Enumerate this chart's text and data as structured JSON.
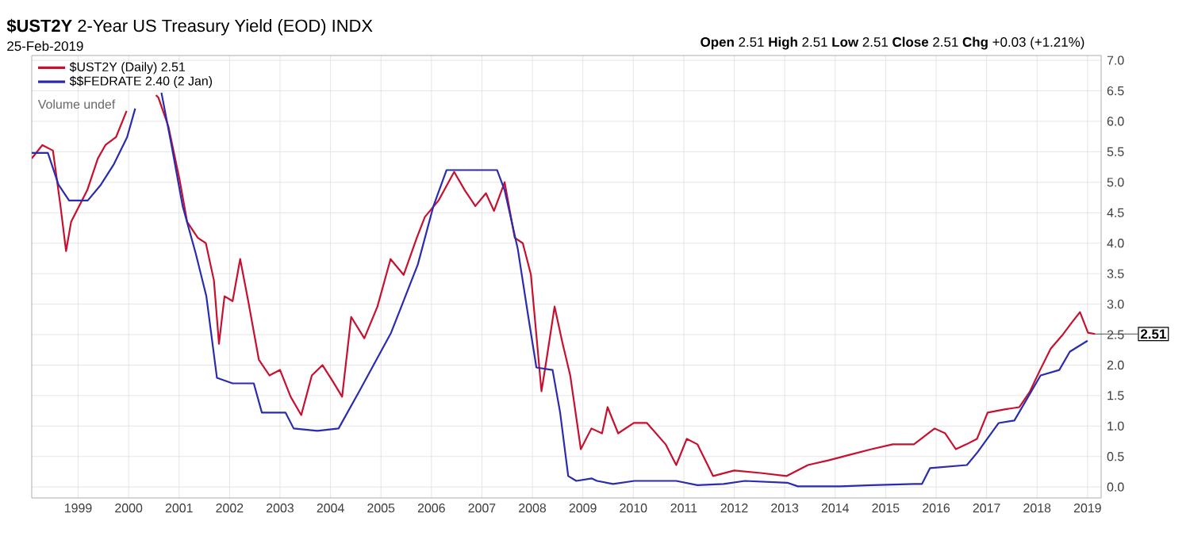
{
  "chart_data": {
    "type": "line",
    "title": "**$UST2Y** 2-Year US Treasury Yield (EOD) INDX",
    "subtitle": "25-Feb-2019",
    "annotations": [
      "**Open** 2.51  **High** 2.51  **Low** 2.51  **Close** 2.51  **Chg** +0.03 (+1.21%)",
      "Volume undef",
      {
        "text": "2.51",
        "x": 2019.15,
        "y": 2.51
      }
    ],
    "xlim": [
      1998.08,
      2019.27
    ],
    "ylim": [
      -0.18,
      7.08
    ],
    "xticks": [
      1999,
      2000,
      2001,
      2002,
      2003,
      2004,
      2005,
      2006,
      2007,
      2008,
      2009,
      2010,
      2011,
      2012,
      2013,
      2014,
      2015,
      2016,
      2017,
      2018,
      2019
    ],
    "yticks": [
      {
        "value": 0,
        "label": "0.0"
      },
      {
        "value": 0.5,
        "label": "0.5"
      },
      {
        "value": 1,
        "label": "1.0"
      },
      {
        "value": 1.5,
        "label": "1.5"
      },
      {
        "value": 2,
        "label": "2.0"
      },
      {
        "value": 2.5,
        "label": "2.5"
      },
      {
        "value": 3,
        "label": "3.0"
      },
      {
        "value": 3.5,
        "label": "3.5"
      },
      {
        "value": 4,
        "label": "4.0"
      },
      {
        "value": 4.5,
        "label": "4.5"
      },
      {
        "value": 5,
        "label": "5.0"
      },
      {
        "value": 5.5,
        "label": "5.5"
      },
      {
        "value": 6,
        "label": "6.0"
      },
      {
        "value": 6.5,
        "label": "6.5"
      },
      {
        "value": 7,
        "label": "7.0"
      }
    ],
    "grid": true,
    "legend": "top left",
    "series": [
      {
        "name": "$UST2Y (Daily) 2.51",
        "color": "#c8102e",
        "x": [
          1998.08,
          1998.29,
          1998.5,
          1998.65,
          1998.76,
          1998.86,
          1999.02,
          1999.18,
          1999.39,
          1999.54,
          1999.75,
          1999.96,
          2000.3,
          2000.54,
          2000.59,
          2000.79,
          2001.01,
          2001.16,
          2001.37,
          2001.53,
          2001.69,
          2001.79,
          2001.9,
          2002.06,
          2002.21,
          2002.37,
          2002.58,
          2002.79,
          2003.0,
          2003.21,
          2003.42,
          2003.63,
          2003.84,
          2004.04,
          2004.23,
          2004.41,
          2004.67,
          2004.93,
          2005.19,
          2005.45,
          2005.71,
          2005.87,
          2006.14,
          2006.45,
          2006.66,
          2006.87,
          2007.08,
          2007.24,
          2007.45,
          2007.65,
          2007.81,
          2007.97,
          2008.18,
          2008.28,
          2008.44,
          2008.6,
          2008.75,
          2008.96,
          2009.17,
          2009.38,
          2009.49,
          2009.7,
          2010.01,
          2010.27,
          2010.64,
          2010.85,
          2011.06,
          2011.27,
          2011.58,
          2012.0,
          2012.52,
          2013.04,
          2013.46,
          2013.88,
          2014.3,
          2014.72,
          2015.14,
          2015.56,
          2015.97,
          2016.18,
          2016.39,
          2016.6,
          2016.81,
          2017.02,
          2017.33,
          2017.65,
          2017.86,
          2018.06,
          2018.27,
          2018.49,
          2018.69,
          2018.85,
          2019.01,
          2019.15
        ],
        "values": [
          5.39,
          5.61,
          5.52,
          4.61,
          3.87,
          4.35,
          4.61,
          4.87,
          5.39,
          5.61,
          5.74,
          6.17,
          null,
          6.43,
          6.39,
          5.91,
          5.04,
          4.35,
          4.09,
          4.0,
          3.39,
          2.35,
          3.13,
          3.05,
          3.74,
          3.05,
          2.09,
          1.83,
          1.92,
          1.48,
          1.18,
          1.83,
          2.0,
          1.74,
          1.48,
          2.79,
          2.44,
          2.96,
          3.74,
          3.48,
          4.09,
          4.43,
          4.7,
          5.17,
          4.87,
          4.61,
          4.82,
          4.53,
          5.0,
          4.09,
          4.0,
          3.49,
          1.57,
          2.09,
          2.96,
          2.35,
          1.83,
          0.62,
          0.96,
          0.88,
          1.31,
          0.88,
          1.05,
          1.05,
          0.7,
          0.36,
          0.79,
          0.7,
          0.18,
          0.27,
          0.23,
          0.18,
          0.36,
          0.44,
          0.53,
          0.62,
          0.7,
          0.7,
          0.96,
          0.88,
          0.62,
          0.7,
          0.79,
          1.22,
          1.27,
          1.31,
          1.57,
          1.92,
          2.27,
          2.48,
          2.7,
          2.87,
          2.53,
          2.51
        ]
      },
      {
        "name": "$$FEDRATE 2.40 (2 Jan)",
        "color": "#2b2bb0",
        "x": [
          1998.08,
          1998.4,
          1998.61,
          1998.82,
          1999.19,
          1999.45,
          1999.71,
          1999.97,
          2000.13,
          2000.4,
          2000.65,
          2000.86,
          2001.07,
          2001.33,
          2001.54,
          2001.75,
          2002.06,
          2002.48,
          2002.64,
          2003.11,
          2003.27,
          2003.74,
          2004.16,
          2004.57,
          2005.2,
          2005.73,
          2006.04,
          2006.3,
          2006.67,
          2007.3,
          2007.45,
          2007.71,
          2007.92,
          2008.08,
          2008.4,
          2008.55,
          2008.71,
          2008.87,
          2009.18,
          2009.28,
          2009.6,
          2010.02,
          2010.85,
          2011.27,
          2011.79,
          2012.21,
          2013.05,
          2013.26,
          2014.1,
          2014.73,
          2015.57,
          2015.72,
          2015.88,
          2016.61,
          2016.82,
          2017.24,
          2017.55,
          2018.07,
          2018.44,
          2018.65,
          2019.0
        ],
        "values": [
          5.48,
          5.48,
          4.96,
          4.7,
          4.7,
          4.96,
          5.3,
          5.74,
          6.21,
          null,
          6.47,
          5.56,
          4.61,
          3.83,
          3.13,
          1.79,
          1.7,
          1.7,
          1.22,
          1.22,
          0.96,
          0.92,
          0.96,
          1.57,
          2.53,
          3.65,
          4.61,
          5.2,
          5.2,
          5.2,
          4.87,
          3.91,
          2.79,
          1.96,
          1.92,
          1.22,
          0.18,
          0.1,
          0.14,
          0.1,
          0.05,
          0.1,
          0.1,
          0.03,
          0.05,
          0.1,
          0.07,
          0.01,
          0.01,
          0.03,
          0.05,
          0.05,
          0.31,
          0.36,
          0.57,
          1.05,
          1.09,
          1.83,
          1.92,
          2.22,
          2.4
        ]
      }
    ]
  }
}
